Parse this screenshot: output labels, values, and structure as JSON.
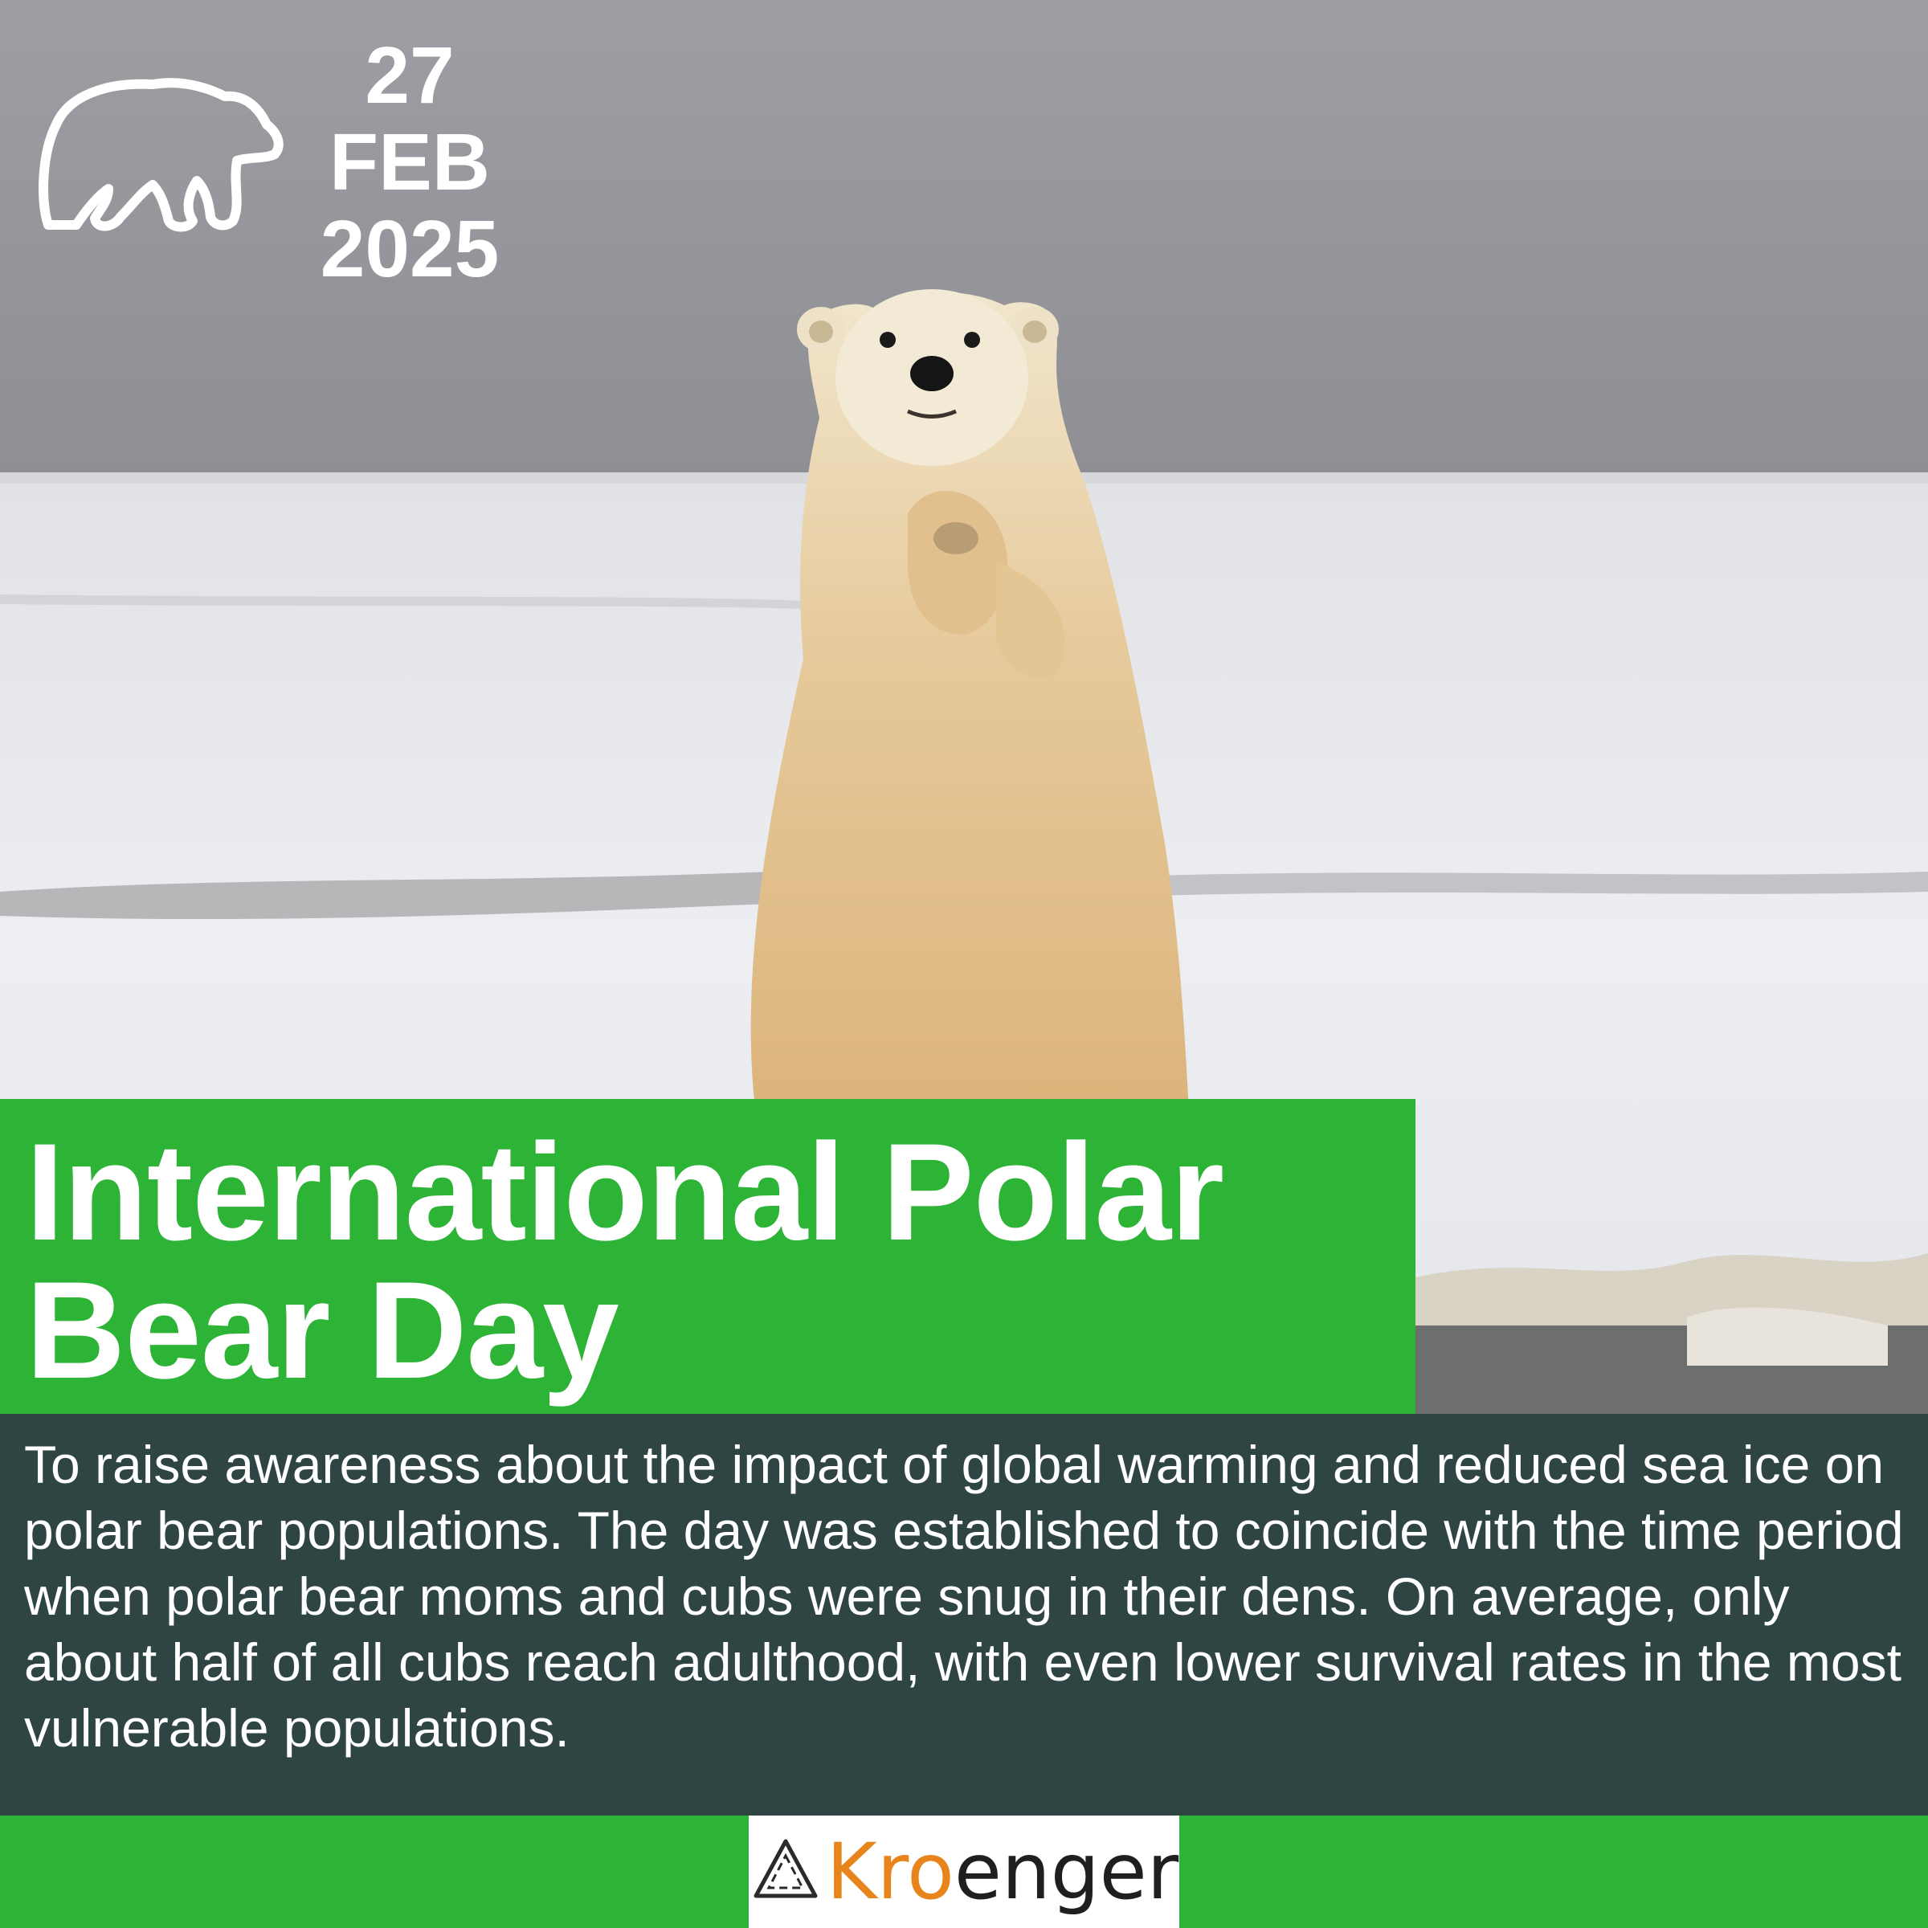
{
  "poster": {
    "date": {
      "day": "27",
      "month": "FEB",
      "year": "2025"
    },
    "title": "International Polar Bear Day",
    "description": "To raise awareness about the impact of global warming and reduced sea ice on polar bear populations. The day was established to coincide with the time period when polar bear moms and cubs were snug in their dens. On average, only about half of all cubs reach adulthood, with even lower survival rates in the most vulnerable populations.",
    "brand": "Kroenger"
  },
  "colors": {
    "accent_green": "#2db336",
    "dark_panel": "#2f4544",
    "brand_orange": "#e8841c",
    "text": "#ffffff"
  },
  "icons": [
    "polar-bear-outline-icon",
    "recycle-triangle-icon"
  ]
}
